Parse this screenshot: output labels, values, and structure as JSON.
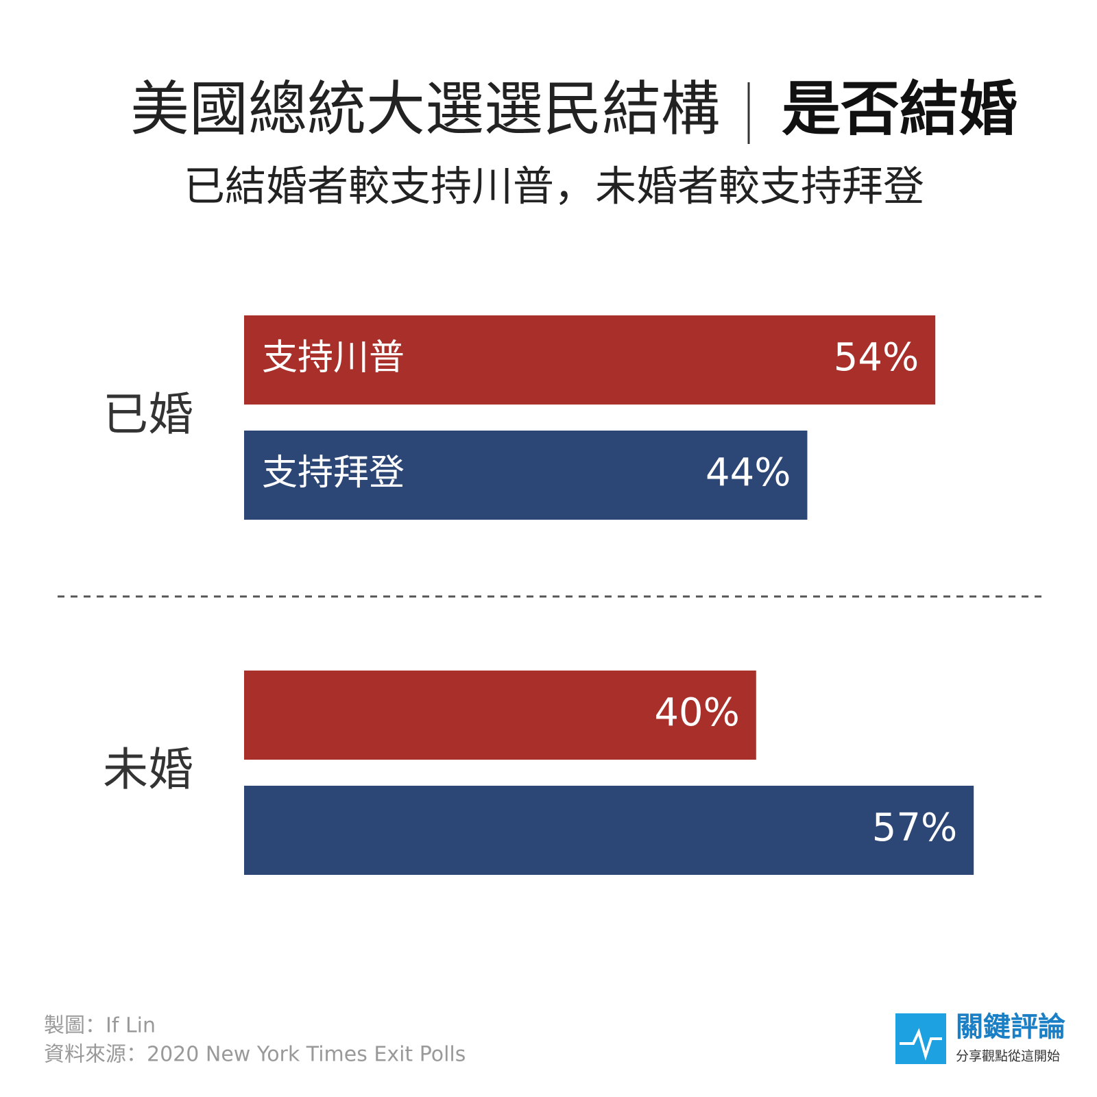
{
  "chart_data": {
    "type": "bar",
    "orientation": "horizontal",
    "title": "美國總統大選選民結構",
    "title_highlight": "是否結婚",
    "subtitle": "已結婚者較支持川普，未婚者較支持拜登",
    "categories": [
      "已婚",
      "未婚"
    ],
    "series": [
      {
        "name": "支持川普",
        "color": "#a9302a",
        "values": [
          54,
          40
        ],
        "value_labels": [
          "54%",
          "40%"
        ]
      },
      {
        "name": "支持拜登",
        "color": "#2c4676",
        "values": [
          44,
          57
        ],
        "value_labels": [
          "44%",
          "57%"
        ]
      }
    ],
    "author_credit": "製圖：If Lin",
    "source_credit": "資料來源：2020 New York Times Exit Polls",
    "logo_name": "關鍵評論",
    "logo_tagline": "分享觀點從這開始"
  }
}
